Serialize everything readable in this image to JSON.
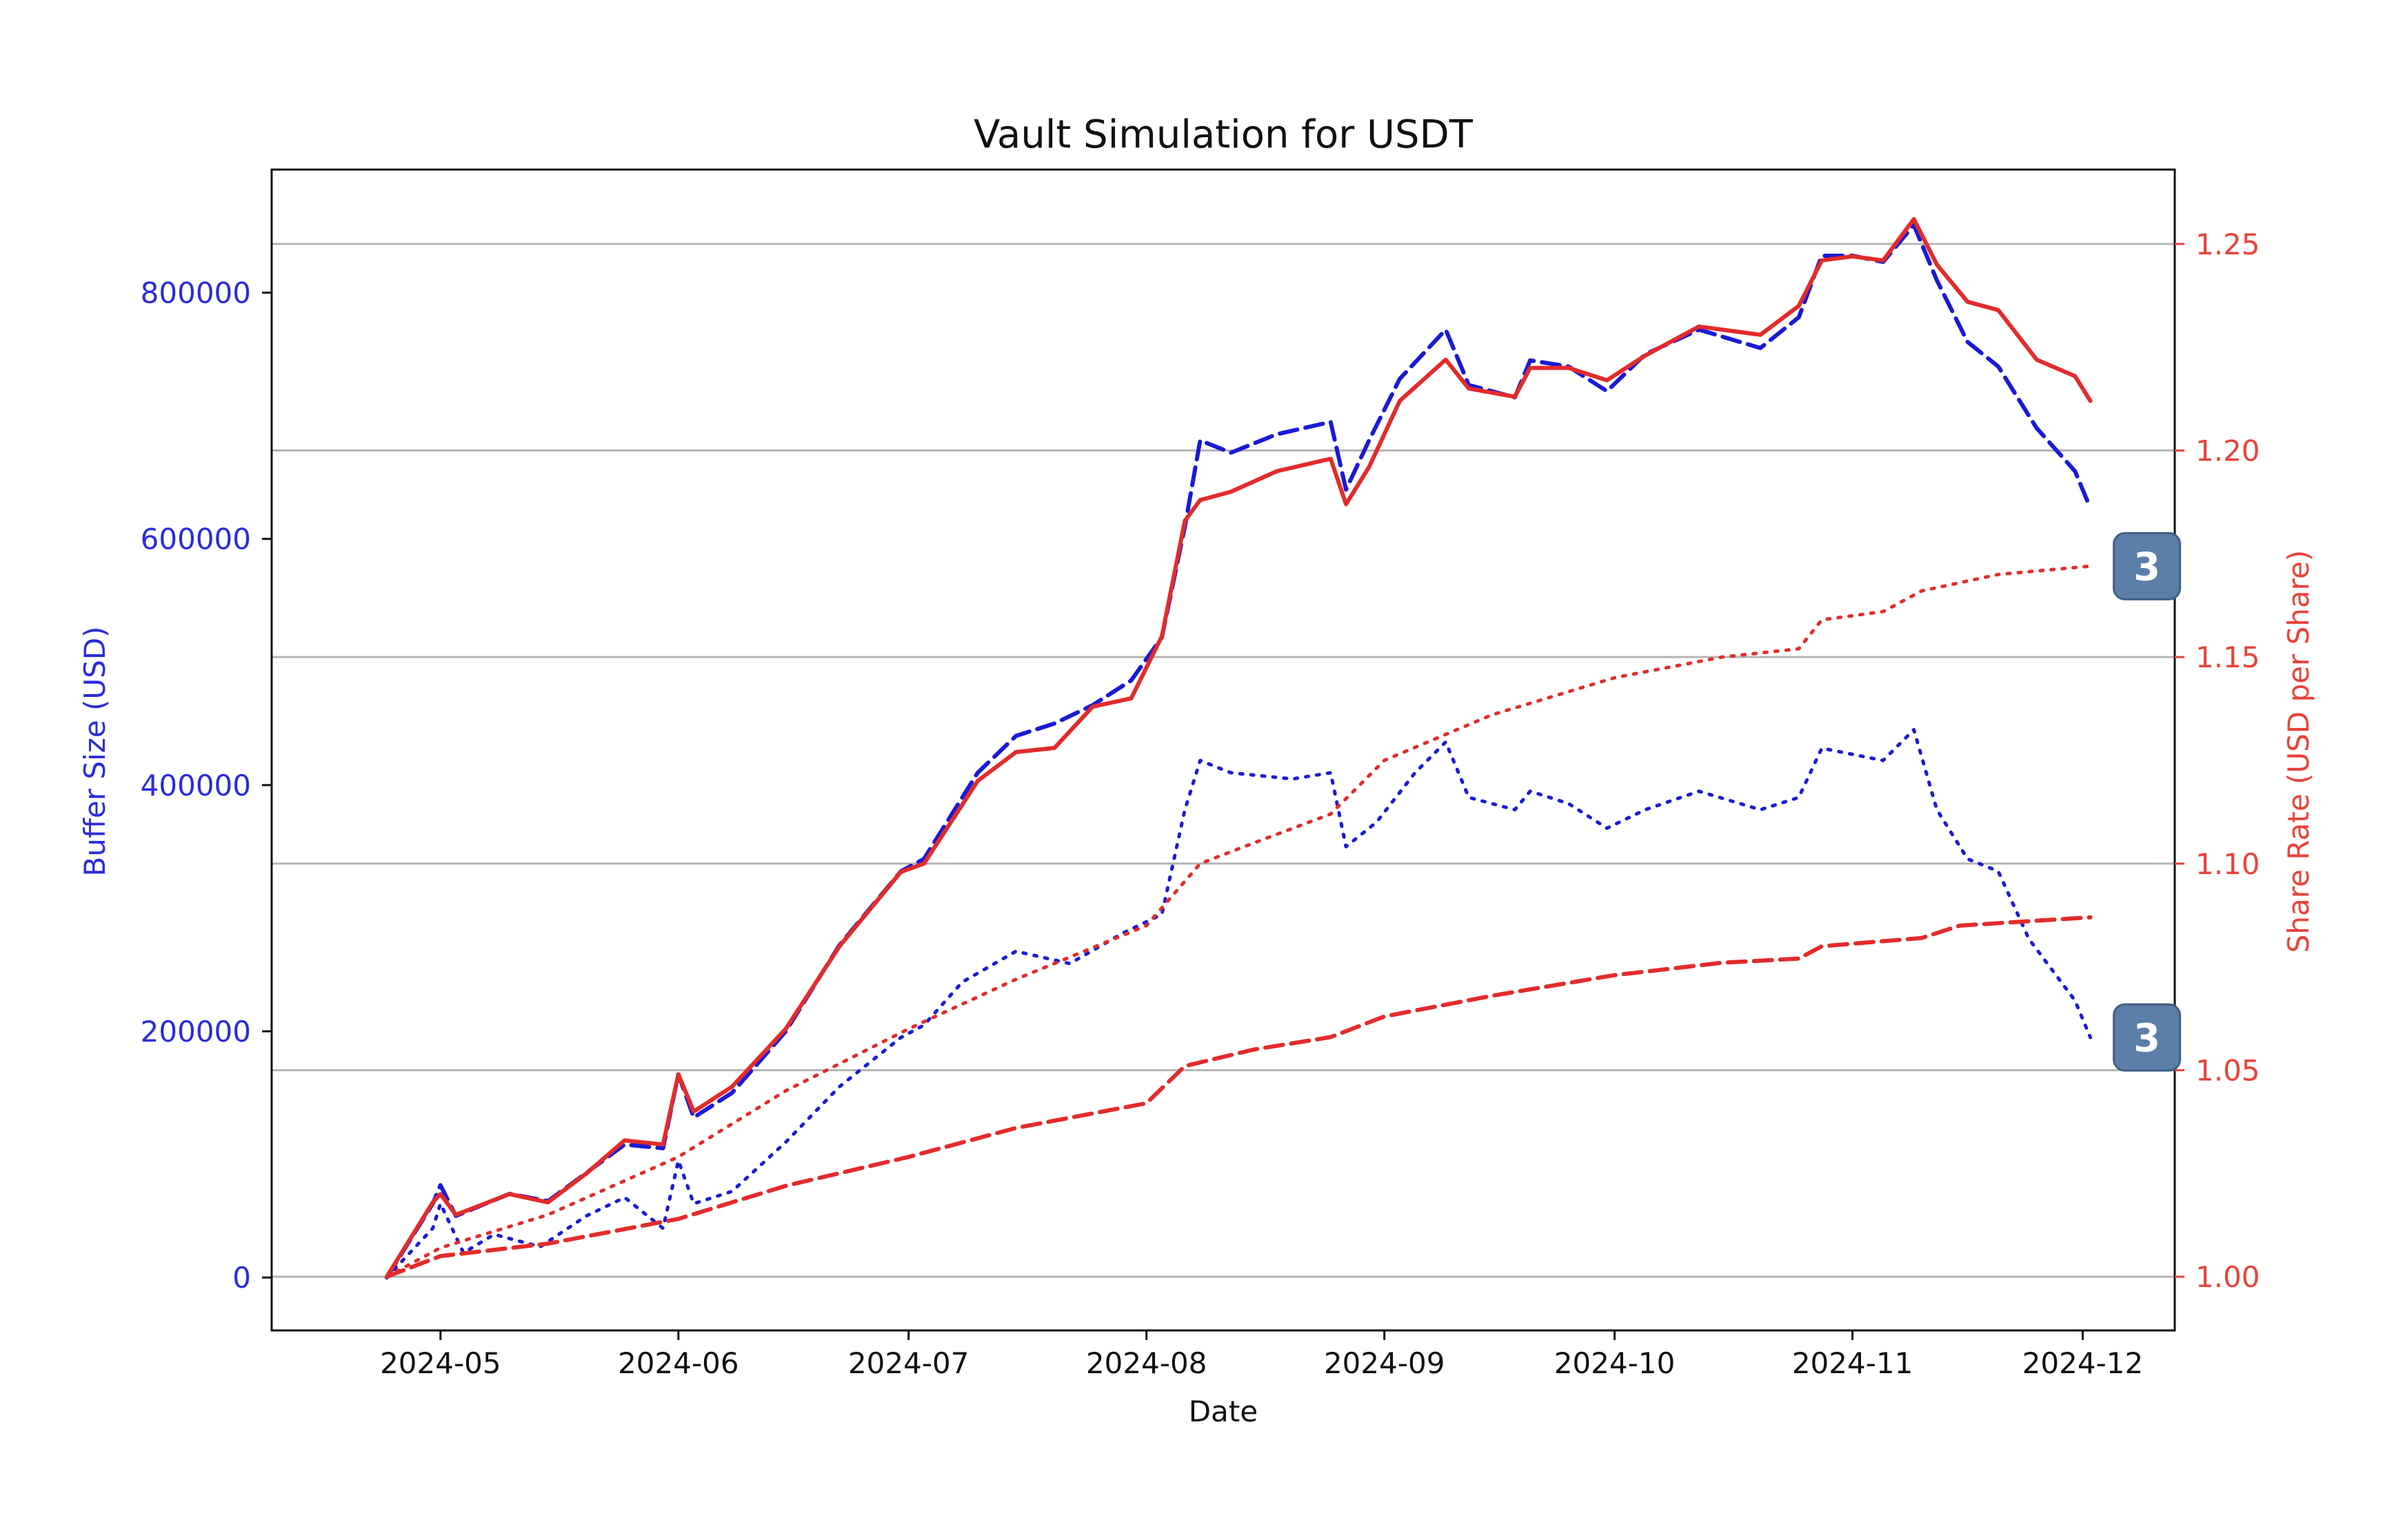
{
  "chart_data": {
    "type": "line",
    "title": "Vault Simulation for USDT",
    "xlabel": "Date",
    "ylabel_left": "Buffer Size (USD)",
    "ylabel_right": "Share Rate (USD per Share)",
    "x_ticks": [
      "2024-05",
      "2024-06",
      "2024-07",
      "2024-08",
      "2024-09",
      "2024-10",
      "2024-11",
      "2024-12"
    ],
    "x_range": [
      "2024-04-09",
      "2024-12-13"
    ],
    "ylim_left": [
      -43000,
      900000
    ],
    "yticks_left": [
      0,
      200000,
      400000,
      600000,
      800000
    ],
    "ylim_right": [
      0.987,
      1.268
    ],
    "yticks_right": [
      "1.00",
      "1.05",
      "1.10",
      "1.15",
      "1.20",
      "1.25"
    ],
    "grid": "horizontal lines at right-axis ticks",
    "colors": {
      "left_axis": "#2b2bdc",
      "right_axis": "#e8433a",
      "blue": "#1a1ad6",
      "red": "#e32b2b"
    },
    "series": [
      {
        "axis": "left",
        "color": "#1a1ad6",
        "style": "dashed",
        "points": [
          [
            "2024-04-24",
            0
          ],
          [
            "2024-04-30",
            60000
          ],
          [
            "2024-05-01",
            75000
          ],
          [
            "2024-05-03",
            50000
          ],
          [
            "2024-05-10",
            68000
          ],
          [
            "2024-05-15",
            62000
          ],
          [
            "2024-05-20",
            85000
          ],
          [
            "2024-05-25",
            108000
          ],
          [
            "2024-05-30",
            105000
          ],
          [
            "2024-06-01",
            165000
          ],
          [
            "2024-06-03",
            130000
          ],
          [
            "2024-06-08",
            150000
          ],
          [
            "2024-06-15",
            200000
          ],
          [
            "2024-06-22",
            270000
          ],
          [
            "2024-06-30",
            330000
          ],
          [
            "2024-07-03",
            340000
          ],
          [
            "2024-07-10",
            410000
          ],
          [
            "2024-07-15",
            440000
          ],
          [
            "2024-07-20",
            450000
          ],
          [
            "2024-07-25",
            465000
          ],
          [
            "2024-07-30",
            485000
          ],
          [
            "2024-08-03",
            520000
          ],
          [
            "2024-08-06",
            610000
          ],
          [
            "2024-08-08",
            680000
          ],
          [
            "2024-08-12",
            670000
          ],
          [
            "2024-08-18",
            685000
          ],
          [
            "2024-08-25",
            695000
          ],
          [
            "2024-08-27",
            640000
          ],
          [
            "2024-08-30",
            680000
          ],
          [
            "2024-09-03",
            730000
          ],
          [
            "2024-09-09",
            770000
          ],
          [
            "2024-09-12",
            725000
          ],
          [
            "2024-09-18",
            715000
          ],
          [
            "2024-09-20",
            745000
          ],
          [
            "2024-09-25",
            740000
          ],
          [
            "2024-09-30",
            720000
          ],
          [
            "2024-10-05",
            750000
          ],
          [
            "2024-10-12",
            770000
          ],
          [
            "2024-10-20",
            755000
          ],
          [
            "2024-10-25",
            780000
          ],
          [
            "2024-10-28",
            830000
          ],
          [
            "2024-11-01",
            830000
          ],
          [
            "2024-11-05",
            825000
          ],
          [
            "2024-11-09",
            855000
          ],
          [
            "2024-11-12",
            810000
          ],
          [
            "2024-11-16",
            760000
          ],
          [
            "2024-11-20",
            740000
          ],
          [
            "2024-11-25",
            690000
          ],
          [
            "2024-11-30",
            655000
          ],
          [
            "2024-12-02",
            625000
          ]
        ]
      },
      {
        "axis": "left",
        "color": "#1a1ad6",
        "style": "dotted",
        "points": [
          [
            "2024-04-24",
            0
          ],
          [
            "2024-04-30",
            40000
          ],
          [
            "2024-05-01",
            60000
          ],
          [
            "2024-05-04",
            20000
          ],
          [
            "2024-05-08",
            35000
          ],
          [
            "2024-05-14",
            25000
          ],
          [
            "2024-05-20",
            50000
          ],
          [
            "2024-05-25",
            65000
          ],
          [
            "2024-05-30",
            40000
          ],
          [
            "2024-06-01",
            95000
          ],
          [
            "2024-06-03",
            60000
          ],
          [
            "2024-06-08",
            70000
          ],
          [
            "2024-06-15",
            110000
          ],
          [
            "2024-06-22",
            155000
          ],
          [
            "2024-06-30",
            195000
          ],
          [
            "2024-07-03",
            205000
          ],
          [
            "2024-07-08",
            240000
          ],
          [
            "2024-07-15",
            265000
          ],
          [
            "2024-07-22",
            255000
          ],
          [
            "2024-07-29",
            280000
          ],
          [
            "2024-08-03",
            295000
          ],
          [
            "2024-08-06",
            380000
          ],
          [
            "2024-08-08",
            420000
          ],
          [
            "2024-08-12",
            410000
          ],
          [
            "2024-08-20",
            405000
          ],
          [
            "2024-08-25",
            410000
          ],
          [
            "2024-08-27",
            350000
          ],
          [
            "2024-08-31",
            370000
          ],
          [
            "2024-09-05",
            410000
          ],
          [
            "2024-09-09",
            435000
          ],
          [
            "2024-09-12",
            390000
          ],
          [
            "2024-09-18",
            380000
          ],
          [
            "2024-09-20",
            395000
          ],
          [
            "2024-09-25",
            385000
          ],
          [
            "2024-09-30",
            365000
          ],
          [
            "2024-10-05",
            380000
          ],
          [
            "2024-10-12",
            395000
          ],
          [
            "2024-10-20",
            380000
          ],
          [
            "2024-10-25",
            390000
          ],
          [
            "2024-10-28",
            430000
          ],
          [
            "2024-11-01",
            425000
          ],
          [
            "2024-11-05",
            420000
          ],
          [
            "2024-11-09",
            445000
          ],
          [
            "2024-11-12",
            380000
          ],
          [
            "2024-11-16",
            340000
          ],
          [
            "2024-11-20",
            330000
          ],
          [
            "2024-11-24",
            275000
          ],
          [
            "2024-11-30",
            225000
          ],
          [
            "2024-12-02",
            195000
          ]
        ]
      },
      {
        "axis": "right",
        "color": "#e32b2b",
        "style": "solid",
        "points": [
          [
            "2024-04-24",
            1.0
          ],
          [
            "2024-04-30",
            1.018
          ],
          [
            "2024-05-01",
            1.02
          ],
          [
            "2024-05-03",
            1.015
          ],
          [
            "2024-05-10",
            1.02
          ],
          [
            "2024-05-15",
            1.018
          ],
          [
            "2024-05-20",
            1.025
          ],
          [
            "2024-05-25",
            1.033
          ],
          [
            "2024-05-30",
            1.032
          ],
          [
            "2024-06-01",
            1.049
          ],
          [
            "2024-06-03",
            1.04
          ],
          [
            "2024-06-08",
            1.046
          ],
          [
            "2024-06-15",
            1.06
          ],
          [
            "2024-06-22",
            1.08
          ],
          [
            "2024-06-30",
            1.098
          ],
          [
            "2024-07-03",
            1.1
          ],
          [
            "2024-07-10",
            1.12
          ],
          [
            "2024-07-15",
            1.127
          ],
          [
            "2024-07-20",
            1.128
          ],
          [
            "2024-07-25",
            1.138
          ],
          [
            "2024-07-30",
            1.14
          ],
          [
            "2024-08-03",
            1.155
          ],
          [
            "2024-08-06",
            1.183
          ],
          [
            "2024-08-08",
            1.188
          ],
          [
            "2024-08-12",
            1.19
          ],
          [
            "2024-08-18",
            1.195
          ],
          [
            "2024-08-25",
            1.198
          ],
          [
            "2024-08-27",
            1.187
          ],
          [
            "2024-08-30",
            1.196
          ],
          [
            "2024-09-03",
            1.212
          ],
          [
            "2024-09-09",
            1.222
          ],
          [
            "2024-09-12",
            1.215
          ],
          [
            "2024-09-18",
            1.213
          ],
          [
            "2024-09-20",
            1.22
          ],
          [
            "2024-09-25",
            1.22
          ],
          [
            "2024-09-30",
            1.217
          ],
          [
            "2024-10-05",
            1.223
          ],
          [
            "2024-10-12",
            1.23
          ],
          [
            "2024-10-20",
            1.228
          ],
          [
            "2024-10-25",
            1.235
          ],
          [
            "2024-10-28",
            1.246
          ],
          [
            "2024-11-01",
            1.247
          ],
          [
            "2024-11-05",
            1.246
          ],
          [
            "2024-11-09",
            1.256
          ],
          [
            "2024-11-12",
            1.245
          ],
          [
            "2024-11-16",
            1.236
          ],
          [
            "2024-11-20",
            1.234
          ],
          [
            "2024-11-25",
            1.222
          ],
          [
            "2024-11-30",
            1.218
          ],
          [
            "2024-12-02",
            1.212
          ]
        ]
      },
      {
        "axis": "right",
        "color": "#e32b2b",
        "style": "dotted",
        "points": [
          [
            "2024-04-24",
            1.0
          ],
          [
            "2024-05-01",
            1.007
          ],
          [
            "2024-05-15",
            1.015
          ],
          [
            "2024-06-01",
            1.029
          ],
          [
            "2024-06-15",
            1.045
          ],
          [
            "2024-07-01",
            1.06
          ],
          [
            "2024-07-15",
            1.072
          ],
          [
            "2024-08-01",
            1.085
          ],
          [
            "2024-08-08",
            1.1
          ],
          [
            "2024-08-15",
            1.105
          ],
          [
            "2024-08-25",
            1.112
          ],
          [
            "2024-09-01",
            1.125
          ],
          [
            "2024-09-15",
            1.136
          ],
          [
            "2024-10-01",
            1.145
          ],
          [
            "2024-10-15",
            1.15
          ],
          [
            "2024-10-25",
            1.152
          ],
          [
            "2024-10-28",
            1.159
          ],
          [
            "2024-11-05",
            1.161
          ],
          [
            "2024-11-10",
            1.166
          ],
          [
            "2024-11-20",
            1.17
          ],
          [
            "2024-12-02",
            1.172
          ]
        ]
      },
      {
        "axis": "right",
        "color": "#e32b2b",
        "style": "dashed",
        "points": [
          [
            "2024-04-24",
            1.0
          ],
          [
            "2024-05-01",
            1.005
          ],
          [
            "2024-05-15",
            1.008
          ],
          [
            "2024-06-01",
            1.014
          ],
          [
            "2024-06-15",
            1.022
          ],
          [
            "2024-07-01",
            1.029
          ],
          [
            "2024-07-15",
            1.036
          ],
          [
            "2024-08-01",
            1.042
          ],
          [
            "2024-08-06",
            1.051
          ],
          [
            "2024-08-15",
            1.055
          ],
          [
            "2024-08-25",
            1.058
          ],
          [
            "2024-09-01",
            1.063
          ],
          [
            "2024-09-15",
            1.068
          ],
          [
            "2024-10-01",
            1.073
          ],
          [
            "2024-10-15",
            1.076
          ],
          [
            "2024-10-25",
            1.077
          ],
          [
            "2024-10-28",
            1.08
          ],
          [
            "2024-11-10",
            1.082
          ],
          [
            "2024-11-15",
            1.085
          ],
          [
            "2024-12-02",
            1.087
          ]
        ]
      }
    ],
    "badges": [
      {
        "label": "3",
        "attached_to": "end of red dotted series"
      },
      {
        "label": "3",
        "attached_to": "end of blue dotted series"
      }
    ]
  }
}
